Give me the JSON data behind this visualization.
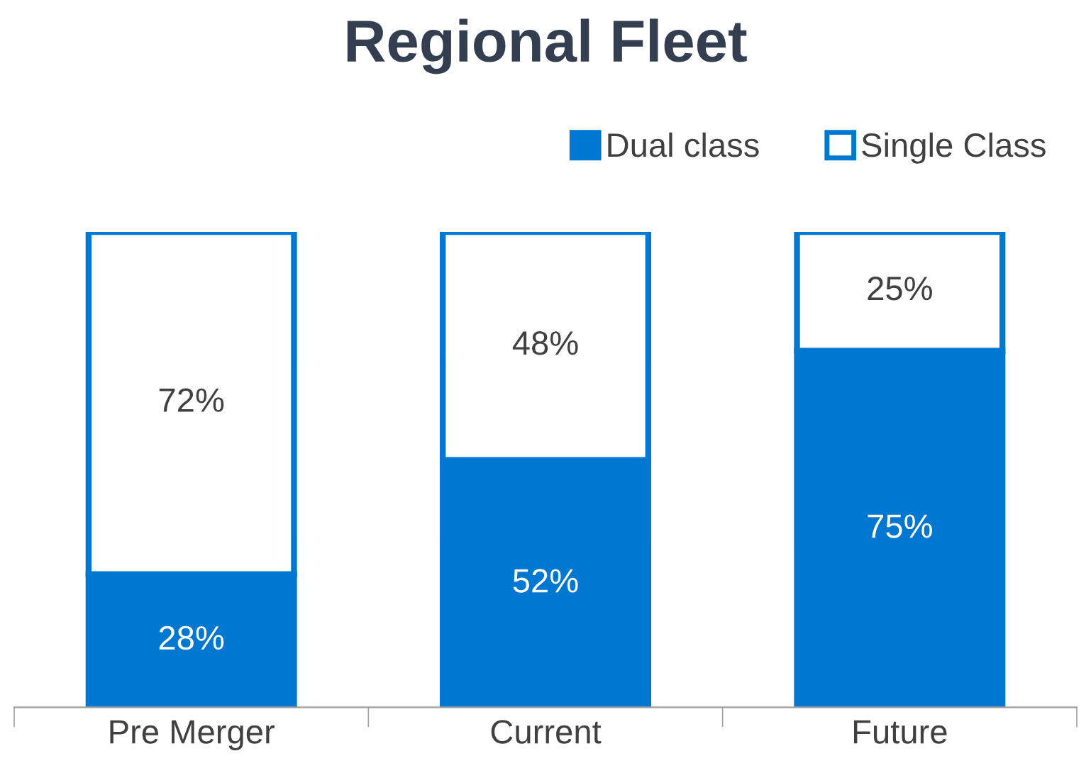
{
  "chart_data": {
    "type": "bar",
    "title": "Regional Fleet",
    "stacked": true,
    "categories": [
      "Pre Merger",
      "Current",
      "Future"
    ],
    "series": [
      {
        "name": "Dual class",
        "color": "#0077d0",
        "values": [
          28,
          52,
          75
        ],
        "value_labels": [
          "28%",
          "52%",
          "75%"
        ]
      },
      {
        "name": "Single Class",
        "color": "#ffffff",
        "values": [
          72,
          48,
          25
        ],
        "value_labels": [
          "72%",
          "48%",
          "25%"
        ]
      }
    ],
    "legend": "top right",
    "tick_labels": "x"
  }
}
